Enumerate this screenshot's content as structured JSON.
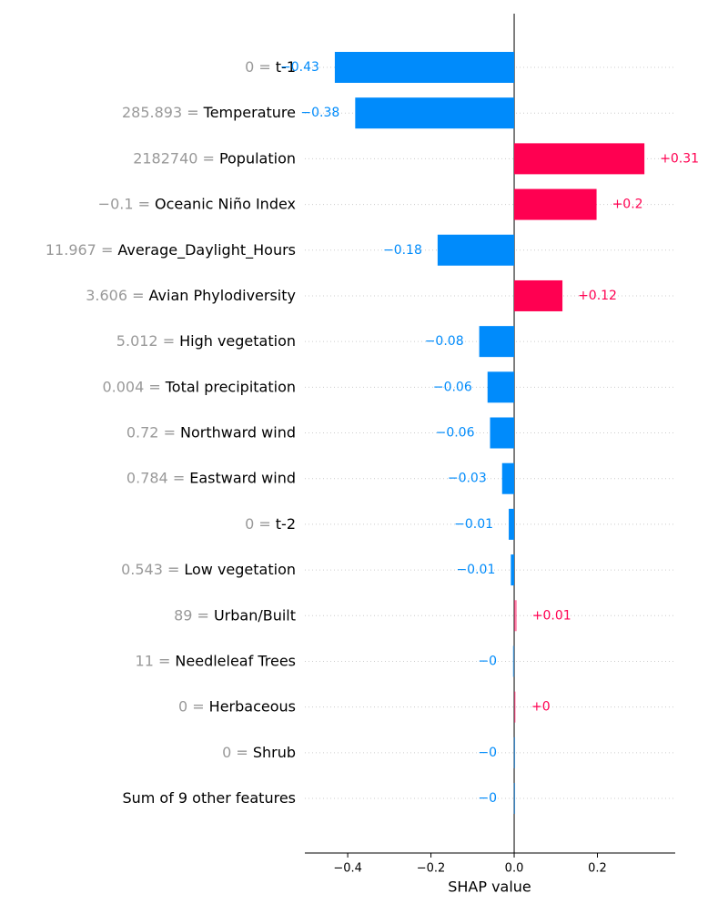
{
  "chart_data": {
    "type": "bar",
    "categories": [
      "t-1",
      "Temperature",
      "Population",
      "Oceanic Niño Index",
      "Average_Daylight_Hours",
      "Avian Phylodiversity",
      "High vegetation",
      "Total precipitation",
      "Northward wind",
      "Eastward wind",
      "t-2",
      "Low vegetation",
      "Urban/Built",
      "Needleleaf Trees",
      "Herbaceous",
      "Shrub",
      "Sum of 9 other features"
    ],
    "feature_values": [
      "0 =",
      "285.893 =",
      "2182740 =",
      "−0.1 =",
      "11.967 =",
      "3.606 =",
      "5.012 =",
      "0.004 =",
      "0.72 =",
      "0.784 =",
      "0 =",
      "0.543 =",
      "89 =",
      "11 =",
      "0 =",
      "0 =",
      null
    ],
    "values": [
      -0.431,
      -0.382,
      0.313,
      0.198,
      -0.184,
      0.116,
      -0.084,
      -0.064,
      -0.058,
      -0.029,
      -0.013,
      -0.008,
      0.006,
      -0.003,
      0.002,
      -0.001,
      -0.001
    ],
    "value_labels": [
      "−0.43",
      "−0.38",
      "+0.31",
      "+0.2",
      "−0.18",
      "+0.12",
      "−0.08",
      "−0.06",
      "−0.06",
      "−0.03",
      "−0.01",
      "−0.01",
      "+0.01",
      "−0",
      "+0",
      "−0",
      "−0"
    ],
    "positive_color": "#ff0051",
    "negative_color": "#008bfb",
    "xlabel": "SHAP value",
    "xlim": [
      -0.503,
      0.387
    ],
    "xticks": [
      {
        "value": -0.4,
        "label": "−0.4"
      },
      {
        "value": -0.2,
        "label": "−0.2"
      },
      {
        "value": 0,
        "label": "0.0"
      },
      0.2
    ],
    "grid": true
  }
}
